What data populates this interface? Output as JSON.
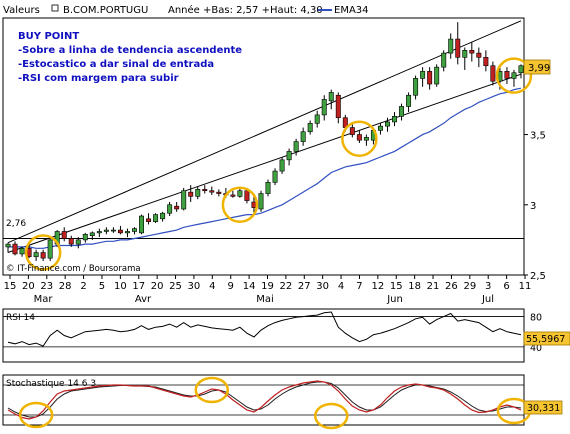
{
  "header": {
    "valeurs_label": "Valeurs",
    "ticker": "B.COM.PORTUGU",
    "year_range": "Année +Bas: 2,57 +Haut: 4,30",
    "ema_label": "EMA34"
  },
  "annotation": {
    "title": "BUY POINT",
    "lines": [
      "-Sobre a linha de tendencia ascendente",
      "-Estocastico a dar sinal de entrada",
      "-RSI com margem para subir"
    ]
  },
  "watermark": "© IT-Finance.com / Boursorama",
  "colors": {
    "up": "#3fa03f",
    "down": "#c02020",
    "ema": "#3050c0",
    "annotation": "#1010c0",
    "circle": "#f0b400",
    "last_badge": "#f5c430",
    "stoch_k": "#c02020",
    "stoch_d": "#202020"
  },
  "chart_data": [
    {
      "type": "candlestick",
      "ylim": [
        2.5,
        4.33
      ],
      "y_ticks": [
        "2,5",
        "3",
        "3,5"
      ],
      "x_labels": [
        "15",
        "20",
        "23",
        "28",
        "2",
        "5",
        "10",
        "17",
        "20",
        "25",
        "30",
        "4",
        "9",
        "14",
        "19",
        "22",
        "27",
        "30",
        "4",
        "7",
        "12",
        "15",
        "18",
        "21",
        "26",
        "29",
        "3",
        "6",
        "11"
      ],
      "months": [
        "Mar",
        "Avr",
        "Mai",
        "Jun",
        "Jul"
      ],
      "ohlc": [
        [
          2.7,
          2.73,
          2.66,
          2.72
        ],
        [
          2.72,
          2.74,
          2.64,
          2.65
        ],
        [
          2.65,
          2.7,
          2.63,
          2.69
        ],
        [
          2.69,
          2.71,
          2.62,
          2.63
        ],
        [
          2.63,
          2.68,
          2.6,
          2.66
        ],
        [
          2.66,
          2.68,
          2.6,
          2.62
        ],
        [
          2.62,
          2.76,
          2.6,
          2.75
        ],
        [
          2.72,
          2.82,
          2.7,
          2.81
        ],
        [
          2.81,
          2.84,
          2.74,
          2.76
        ],
        [
          2.76,
          2.78,
          2.7,
          2.72
        ],
        [
          2.72,
          2.77,
          2.69,
          2.75
        ],
        [
          2.75,
          2.8,
          2.73,
          2.79
        ],
        [
          2.78,
          2.81,
          2.75,
          2.8
        ],
        [
          2.8,
          2.83,
          2.77,
          2.81
        ],
        [
          2.81,
          2.84,
          2.79,
          2.82
        ],
        [
          2.82,
          2.84,
          2.8,
          2.82
        ],
        [
          2.82,
          2.85,
          2.79,
          2.8
        ],
        [
          2.8,
          2.83,
          2.77,
          2.81
        ],
        [
          2.81,
          2.84,
          2.79,
          2.83
        ],
        [
          2.8,
          2.93,
          2.79,
          2.92
        ],
        [
          2.9,
          2.94,
          2.86,
          2.88
        ],
        [
          2.88,
          2.94,
          2.87,
          2.93
        ],
        [
          2.9,
          2.95,
          2.88,
          2.94
        ],
        [
          2.94,
          3.02,
          2.92,
          3.0
        ],
        [
          2.99,
          3.02,
          2.95,
          2.97
        ],
        [
          2.97,
          3.12,
          2.96,
          3.1
        ],
        [
          3.09,
          3.14,
          3.02,
          3.06
        ],
        [
          3.06,
          3.13,
          3.04,
          3.11
        ],
        [
          3.11,
          3.14,
          3.08,
          3.1
        ],
        [
          3.1,
          3.13,
          3.07,
          3.09
        ],
        [
          3.09,
          3.11,
          3.06,
          3.08
        ],
        [
          3.08,
          3.12,
          3.05,
          3.07
        ],
        [
          3.07,
          3.1,
          3.05,
          3.06
        ],
        [
          3.06,
          3.12,
          3.05,
          3.1
        ],
        [
          3.1,
          3.12,
          3.01,
          3.03
        ],
        [
          3.02,
          3.06,
          2.94,
          2.98
        ],
        [
          2.97,
          3.1,
          2.95,
          3.08
        ],
        [
          3.08,
          3.18,
          3.06,
          3.16
        ],
        [
          3.16,
          3.26,
          3.14,
          3.24
        ],
        [
          3.24,
          3.34,
          3.22,
          3.32
        ],
        [
          3.32,
          3.4,
          3.28,
          3.38
        ],
        [
          3.38,
          3.47,
          3.35,
          3.45
        ],
        [
          3.45,
          3.55,
          3.42,
          3.52
        ],
        [
          3.52,
          3.6,
          3.5,
          3.58
        ],
        [
          3.58,
          3.67,
          3.55,
          3.64
        ],
        [
          3.64,
          3.78,
          3.6,
          3.75
        ],
        [
          3.74,
          3.82,
          3.68,
          3.8
        ],
        [
          3.78,
          3.8,
          3.58,
          3.62
        ],
        [
          3.62,
          3.64,
          3.52,
          3.55
        ],
        [
          3.55,
          3.58,
          3.48,
          3.5
        ],
        [
          3.5,
          3.53,
          3.44,
          3.46
        ],
        [
          3.46,
          3.5,
          3.42,
          3.48
        ],
        [
          3.46,
          3.55,
          3.43,
          3.53
        ],
        [
          3.53,
          3.58,
          3.5,
          3.56
        ],
        [
          3.56,
          3.62,
          3.52,
          3.59
        ],
        [
          3.59,
          3.66,
          3.56,
          3.63
        ],
        [
          3.63,
          3.72,
          3.6,
          3.7
        ],
        [
          3.7,
          3.8,
          3.66,
          3.78
        ],
        [
          3.78,
          3.92,
          3.75,
          3.9
        ],
        [
          3.9,
          3.98,
          3.84,
          3.95
        ],
        [
          3.95,
          3.98,
          3.82,
          3.86
        ],
        [
          3.86,
          4.0,
          3.84,
          3.98
        ],
        [
          3.98,
          4.1,
          3.95,
          4.08
        ],
        [
          4.08,
          4.22,
          4.04,
          4.18
        ],
        [
          4.18,
          4.3,
          4.0,
          4.05
        ],
        [
          4.05,
          4.12,
          3.96,
          4.1
        ],
        [
          4.1,
          4.16,
          4.02,
          4.08
        ],
        [
          4.08,
          4.12,
          3.98,
          4.05
        ],
        [
          4.05,
          4.1,
          3.95,
          3.99
        ],
        [
          3.99,
          4.02,
          3.85,
          3.88
        ],
        [
          3.88,
          3.98,
          3.82,
          3.95
        ],
        [
          3.95,
          3.98,
          3.86,
          3.9
        ],
        [
          3.9,
          3.96,
          3.84,
          3.94
        ],
        [
          3.94,
          4.0,
          3.9,
          3.99
        ]
      ],
      "ema34": [
        2.7,
        2.7,
        2.7,
        2.7,
        2.69,
        2.69,
        2.7,
        2.71,
        2.71,
        2.71,
        2.71,
        2.72,
        2.72,
        2.73,
        2.74,
        2.74,
        2.75,
        2.75,
        2.76,
        2.77,
        2.78,
        2.79,
        2.8,
        2.81,
        2.82,
        2.84,
        2.85,
        2.86,
        2.87,
        2.88,
        2.89,
        2.9,
        2.91,
        2.92,
        2.93,
        2.93,
        2.94,
        2.96,
        2.98,
        3.0,
        3.03,
        3.06,
        3.09,
        3.12,
        3.15,
        3.19,
        3.23,
        3.25,
        3.27,
        3.28,
        3.29,
        3.3,
        3.32,
        3.34,
        3.36,
        3.38,
        3.41,
        3.44,
        3.47,
        3.5,
        3.52,
        3.55,
        3.58,
        3.62,
        3.65,
        3.68,
        3.7,
        3.73,
        3.75,
        3.77,
        3.79,
        3.8,
        3.82,
        3.83
      ],
      "trend_lines": [
        {
          "name": "upper",
          "from": [
            0,
            2.73
          ],
          "to": [
            73,
            4.31
          ]
        },
        {
          "name": "lower",
          "from": [
            0,
            2.66
          ],
          "to": [
            73,
            3.93
          ]
        }
      ],
      "horizontal_line": {
        "value": 2.76,
        "label": "2,76"
      },
      "last_value": "3,99",
      "circles_at": [
        [
          5,
          2.66
        ],
        [
          33,
          3.0
        ],
        [
          50,
          3.47
        ],
        [
          72,
          3.92
        ]
      ]
    },
    {
      "type": "line",
      "name": "RSI 14",
      "ylim": [
        20,
        90
      ],
      "y_ticks": [
        "80",
        "40"
      ],
      "last_value": "55,5967",
      "values": [
        46,
        44,
        47,
        43,
        45,
        41,
        55,
        62,
        55,
        52,
        56,
        60,
        61,
        62,
        63,
        62,
        60,
        61,
        63,
        68,
        63,
        66,
        67,
        70,
        66,
        72,
        66,
        69,
        67,
        65,
        64,
        63,
        62,
        66,
        58,
        53,
        62,
        68,
        72,
        75,
        77,
        79,
        80,
        81,
        82,
        85,
        86,
        66,
        58,
        52,
        47,
        50,
        56,
        58,
        61,
        64,
        68,
        72,
        77,
        79,
        70,
        76,
        80,
        84,
        74,
        76,
        74,
        72,
        66,
        60,
        64,
        60,
        58,
        56
      ]
    },
    {
      "type": "line",
      "name": "Stochastique 14 6 3",
      "ylim": [
        0,
        100
      ],
      "last_value": "30,331",
      "k": [
        30,
        22,
        15,
        12,
        16,
        28,
        46,
        62,
        68,
        70,
        72,
        74,
        76,
        78,
        79,
        80,
        80,
        79,
        78,
        78,
        78,
        74,
        70,
        66,
        62,
        58,
        56,
        60,
        66,
        72,
        70,
        62,
        50,
        40,
        30,
        26,
        35,
        48,
        60,
        70,
        76,
        80,
        84,
        86,
        88,
        86,
        80,
        68,
        52,
        38,
        30,
        26,
        30,
        40,
        55,
        68,
        76,
        80,
        82,
        80,
        76,
        74,
        70,
        62,
        52,
        40,
        30,
        25,
        26,
        30,
        36,
        40,
        36,
        30
      ],
      "d": [
        34,
        26,
        20,
        16,
        16,
        22,
        36,
        52,
        62,
        68,
        70,
        72,
        74,
        76,
        77,
        78,
        79,
        79,
        78,
        78,
        77,
        76,
        72,
        68,
        64,
        60,
        58,
        58,
        62,
        68,
        70,
        66,
        56,
        46,
        36,
        30,
        32,
        40,
        52,
        62,
        70,
        76,
        80,
        84,
        86,
        86,
        83,
        74,
        60,
        46,
        36,
        30,
        30,
        36,
        48,
        60,
        70,
        76,
        80,
        80,
        78,
        75,
        72,
        66,
        58,
        48,
        38,
        30,
        27,
        28,
        32,
        36,
        36,
        34
      ]
    }
  ]
}
